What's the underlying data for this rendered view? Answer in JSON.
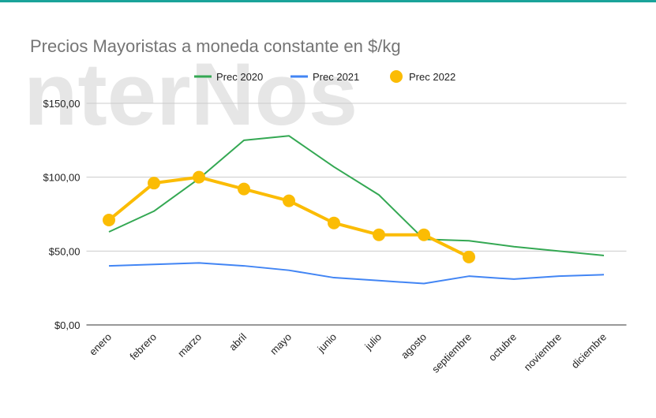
{
  "chart_data": {
    "type": "line",
    "title": "Precios Mayoristas a moneda constante en $/kg",
    "watermark": "nterNos",
    "categories": [
      "enero",
      "febrero",
      "marzo",
      "abril",
      "mayo",
      "junio",
      "julio",
      "agosto",
      "septiembre",
      "octubre",
      "noviembre",
      "diciembre"
    ],
    "series": [
      {
        "name": "Prec 2020",
        "color": "#34a853",
        "values": [
          63,
          77,
          99,
          125,
          128,
          107,
          88,
          58,
          57,
          53,
          50,
          47
        ]
      },
      {
        "name": "Prec 2021",
        "color": "#4285f4",
        "values": [
          40,
          41,
          42,
          40,
          37,
          32,
          30,
          28,
          33,
          31,
          33,
          34
        ]
      },
      {
        "name": "Prec 2022",
        "color": "#fbbc04",
        "markers": true,
        "values": [
          71,
          96,
          100,
          92,
          84,
          69,
          61,
          61,
          46,
          null,
          null,
          null
        ]
      }
    ],
    "ylim": [
      0,
      150
    ],
    "yticks": [
      {
        "value": 0,
        "label": "$0,00"
      },
      {
        "value": 50,
        "label": "$50,00"
      },
      {
        "value": 100,
        "label": "$100,00"
      },
      {
        "value": 150,
        "label": "$150,00"
      }
    ],
    "grid": true,
    "legend": "top"
  }
}
